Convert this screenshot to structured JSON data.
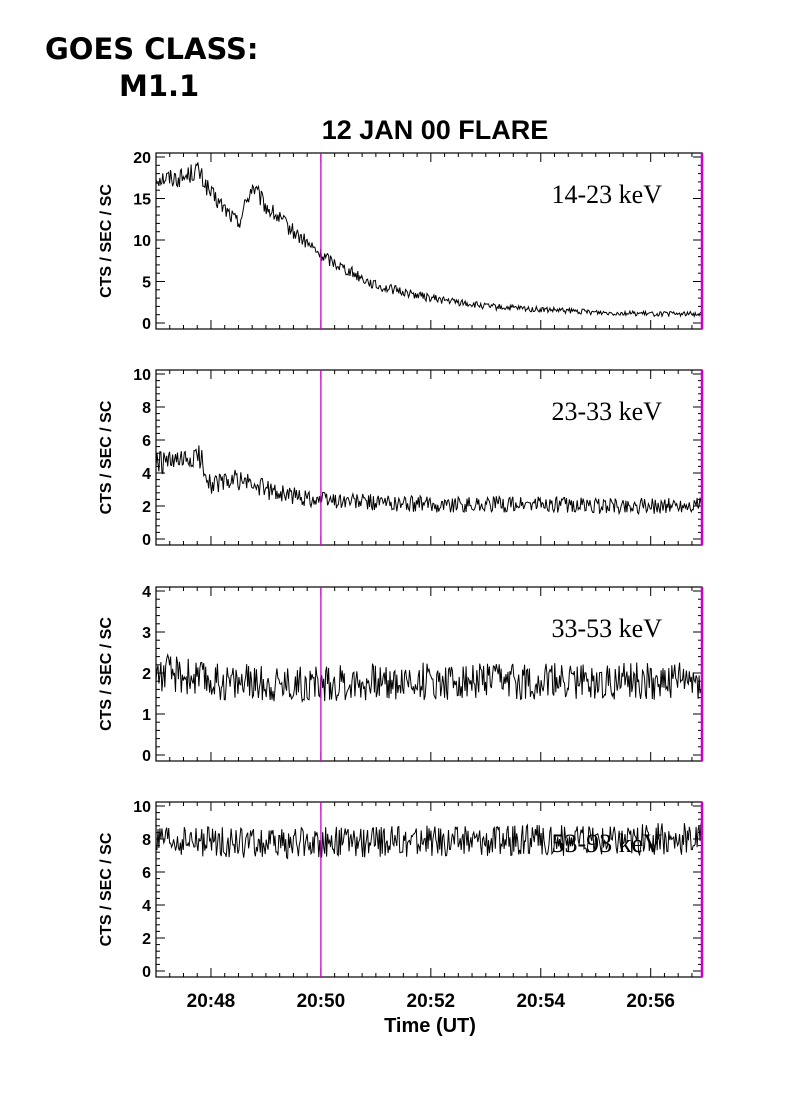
{
  "header": {
    "goes_label": "GOES CLASS:",
    "goes_value": "M1.1"
  },
  "colors": {
    "trace": "#000000",
    "marker": "#cc00cc",
    "frame": "#000000"
  },
  "chart_data": [
    {
      "type": "line",
      "title": "12 JAN 00 FLARE",
      "band_label": "14-23 keV",
      "ylabel": "CTS / SEC / SC",
      "ylim": [
        0,
        20
      ],
      "yticks": [
        0,
        5,
        10,
        15,
        20
      ],
      "xlim": [
        "20:47:00",
        "20:56:56"
      ],
      "marker_time": "20:50",
      "series": [
        {
          "x": [
            "20:47:00",
            "20:47:30",
            "20:47:45",
            "20:48:00",
            "20:48:30",
            "20:48:45",
            "20:49:00",
            "20:49:30",
            "20:50:00",
            "20:51:00",
            "20:52:00",
            "20:53:00",
            "20:54:00",
            "20:55:00",
            "20:56:00",
            "20:56:56"
          ],
          "values": [
            17.5,
            17.5,
            18.5,
            15.5,
            12,
            16.5,
            14,
            11,
            8.2,
            4.5,
            3,
            2,
            1.6,
            1.3,
            1.1,
            1.1
          ]
        }
      ]
    },
    {
      "type": "line",
      "band_label": "23-33 keV",
      "ylabel": "CTS / SEC / SC",
      "ylim": [
        0,
        10
      ],
      "yticks": [
        0,
        2,
        4,
        6,
        8,
        10
      ],
      "xlim": [
        "20:47:00",
        "20:56:56"
      ],
      "marker_time": "20:50",
      "series": [
        {
          "x": [
            "20:47:00",
            "20:47:30",
            "20:47:48",
            "20:48:00",
            "20:48:30",
            "20:49:00",
            "20:49:30",
            "20:50:00",
            "20:51:00",
            "20:52:00",
            "20:53:00",
            "20:54:00",
            "20:55:00",
            "20:56:00",
            "20:56:56"
          ],
          "values": [
            4.6,
            4.6,
            5.0,
            3.3,
            3.6,
            3.0,
            2.6,
            2.4,
            2.2,
            2.1,
            2.1,
            2.1,
            2.0,
            2.0,
            2.1
          ]
        }
      ]
    },
    {
      "type": "line",
      "band_label": "33-53 keV",
      "ylabel": "CTS / SEC / SC",
      "ylim": [
        0,
        4
      ],
      "yticks": [
        0,
        1,
        2,
        3,
        4
      ],
      "xlim": [
        "20:47:00",
        "20:56:56"
      ],
      "marker_time": "20:50",
      "series": [
        {
          "x": [
            "20:47:00",
            "20:47:30",
            "20:48:00",
            "20:49:00",
            "20:50:00",
            "20:51:00",
            "20:52:00",
            "20:53:00",
            "20:54:00",
            "20:55:00",
            "20:56:00",
            "20:56:56"
          ],
          "values": [
            2.0,
            1.95,
            1.8,
            1.75,
            1.75,
            1.78,
            1.8,
            1.8,
            1.8,
            1.8,
            1.8,
            1.8
          ]
        }
      ]
    },
    {
      "type": "line",
      "band_label": "53-93 keV",
      "ylabel": "CTS / SEC / SC",
      "xlabel": "Time (UT)",
      "ylim": [
        0,
        10
      ],
      "yticks": [
        0,
        2,
        4,
        6,
        8,
        10
      ],
      "xlim": [
        "20:47:00",
        "20:56:56"
      ],
      "xticks": [
        "20:48",
        "20:50",
        "20:52",
        "20:54",
        "20:56"
      ],
      "marker_time": "20:50",
      "series": [
        {
          "x": [
            "20:47:00",
            "20:48:00",
            "20:49:00",
            "20:50:00",
            "20:51:00",
            "20:52:00",
            "20:53:00",
            "20:54:00",
            "20:55:00",
            "20:56:00",
            "20:56:56"
          ],
          "values": [
            7.8,
            7.8,
            7.7,
            7.8,
            7.8,
            7.9,
            7.9,
            7.9,
            7.9,
            8.0,
            8.0
          ]
        }
      ]
    }
  ]
}
